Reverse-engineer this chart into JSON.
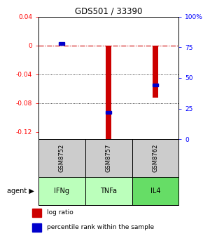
{
  "title": "GDS501 / 33390",
  "samples": [
    "GSM8752",
    "GSM8757",
    "GSM8762"
  ],
  "agents": [
    "IFNg",
    "TNFa",
    "IL4"
  ],
  "log_ratios": [
    0.002,
    -0.13,
    -0.072
  ],
  "percentile_ranks": [
    0.78,
    0.22,
    0.44
  ],
  "ylim_left": [
    -0.13,
    0.04
  ],
  "ylim_right": [
    0.0,
    1.0
  ],
  "yticks_left": [
    0.04,
    0.0,
    -0.04,
    -0.08,
    -0.12
  ],
  "yticks_right": [
    1.0,
    0.75,
    0.5,
    0.25,
    0.0
  ],
  "ytick_labels_left": [
    "0.04",
    "0",
    "-0.04",
    "-0.08",
    "-0.12"
  ],
  "ytick_labels_right": [
    "100%",
    "75",
    "50",
    "25",
    "0"
  ],
  "bar_color": "#cc0000",
  "percentile_color": "#0000cc",
  "zero_line_color": "#cc0000",
  "grid_color": "#000000",
  "sample_bg": "#cccccc",
  "agent_colors": [
    "#bbffbb",
    "#bbffbb",
    "#66dd66"
  ],
  "legend_bar_label": "log ratio",
  "legend_pct_label": "percentile rank within the sample",
  "background_color": "#ffffff"
}
